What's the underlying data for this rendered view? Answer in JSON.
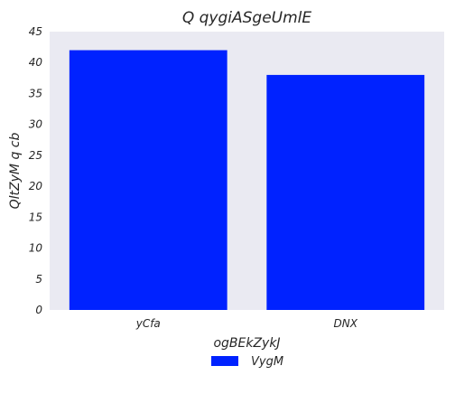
{
  "chart_data": {
    "type": "bar",
    "title": "Q qygiASgeUmlE",
    "xlabel": "ogBEkZykJ",
    "ylabel": "QltZyM q cb",
    "categories": [
      "yCfa",
      "DNX"
    ],
    "series": [
      {
        "name": "VygM",
        "values": [
          42,
          38
        ]
      }
    ],
    "ylim": [
      0,
      45
    ],
    "yticks": [
      0,
      5,
      10,
      15,
      20,
      25,
      30,
      35,
      40,
      45
    ],
    "grid": false,
    "legend_position": "bottom-center",
    "colors": {
      "plot_background": "#eaeaf2",
      "bar": "#0022ff",
      "text": "#262626"
    }
  }
}
